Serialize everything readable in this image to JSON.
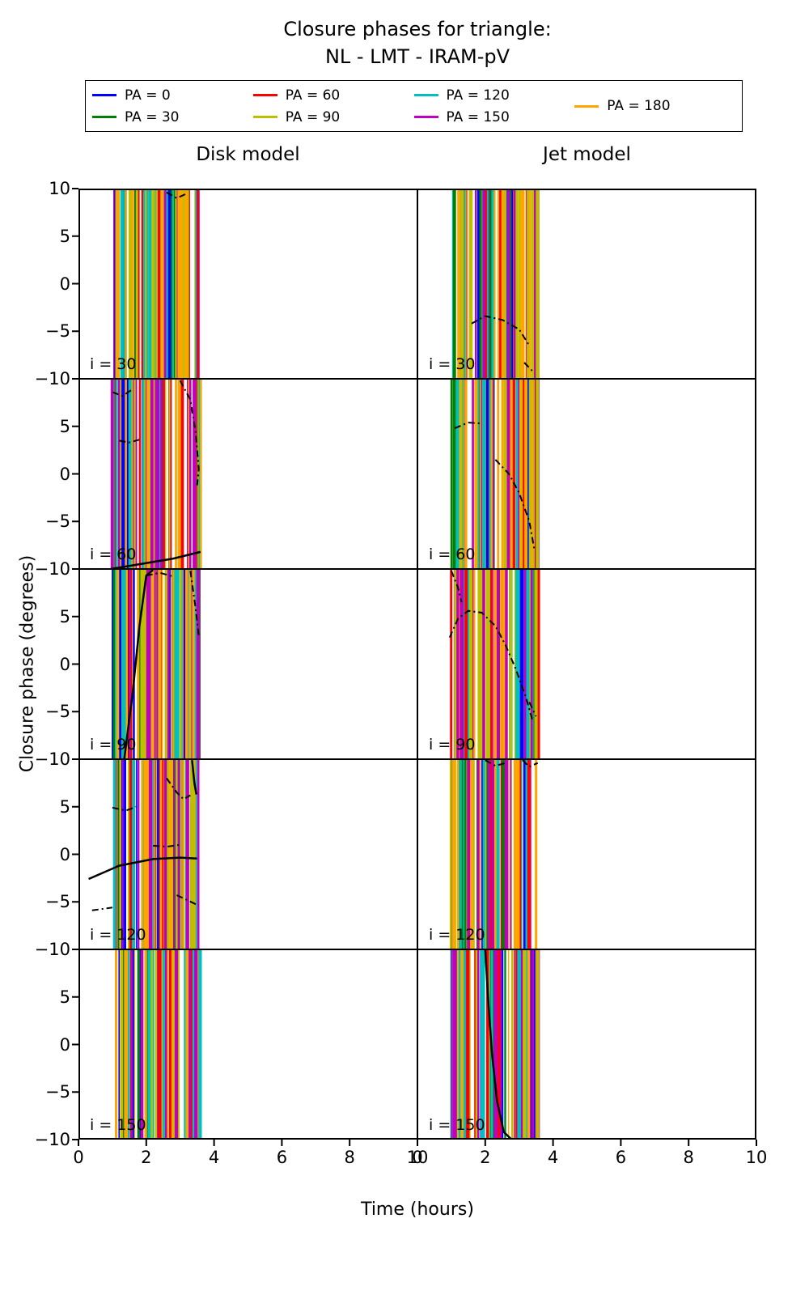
{
  "title": {
    "line1": "Closure phases for triangle:",
    "line2": "NL - LMT - IRAM-pV"
  },
  "legend": {
    "items": [
      {
        "label": "PA = 0",
        "color": "#0000ff"
      },
      {
        "label": "PA = 30",
        "color": "#007f00"
      },
      {
        "label": "PA = 60",
        "color": "#ff0000"
      },
      {
        "label": "PA = 90",
        "color": "#bfbf00"
      },
      {
        "label": "PA = 120",
        "color": "#00bfbf"
      },
      {
        "label": "PA = 150",
        "color": "#bf00bf"
      },
      {
        "label": "PA = 180",
        "color": "#ffa500"
      }
    ],
    "stripe_weights": [
      1,
      1,
      1,
      3,
      2,
      2,
      3
    ]
  },
  "columns": [
    "Disk model",
    "Jet model"
  ],
  "xlabel": "Time (hours)",
  "ylabel": "Closure phase (degrees)",
  "chart_data": {
    "type": "line",
    "layout": {
      "rows": 5,
      "cols": 2,
      "xlim": [
        0,
        10
      ],
      "ylim": [
        -10,
        10
      ],
      "xticks": [
        0,
        2,
        4,
        6,
        8,
        10
      ],
      "yticks": [
        10,
        5,
        0,
        -5,
        -10
      ],
      "grid": false,
      "legend_position": "top"
    },
    "inclinations": [
      30,
      60,
      90,
      120,
      150
    ],
    "oscillation_band": {
      "t_start": 0.95,
      "t_end": 3.55,
      "y_min": -10,
      "y_max": 10,
      "stripe_count": 85,
      "description_colors_cycle_all_PA": true
    },
    "panels": [
      {
        "model": "disk",
        "label": "i = 30",
        "seed": 101,
        "curves": [
          {
            "style": "dashed",
            "pts": [
              [
                2.6,
                9.6
              ],
              [
                2.9,
                9.0
              ],
              [
                3.15,
                9.4
              ]
            ]
          }
        ]
      },
      {
        "model": "jet",
        "label": "i = 30",
        "seed": 202,
        "curves": [
          {
            "style": "dashed",
            "pts": [
              [
                1.6,
                -4.2
              ],
              [
                2.0,
                -3.4
              ],
              [
                2.5,
                -3.8
              ],
              [
                3.0,
                -4.8
              ],
              [
                3.3,
                -6.5
              ]
            ]
          },
          {
            "style": "dashed",
            "pts": [
              [
                3.15,
                -8.3
              ],
              [
                3.45,
                -9.4
              ]
            ]
          }
        ]
      },
      {
        "model": "disk",
        "label": "i = 60",
        "seed": 303,
        "curves": [
          {
            "style": "solid",
            "pts": [
              [
                0.95,
                -10.0
              ],
              [
                1.8,
                -9.5
              ],
              [
                2.8,
                -8.9
              ],
              [
                3.6,
                -8.2
              ]
            ]
          },
          {
            "style": "dashed",
            "pts": [
              [
                1.0,
                8.6
              ],
              [
                1.3,
                8.2
              ],
              [
                1.6,
                8.9
              ]
            ]
          },
          {
            "style": "dashed",
            "pts": [
              [
                1.2,
                3.5
              ],
              [
                1.5,
                3.3
              ],
              [
                1.8,
                3.6
              ]
            ]
          },
          {
            "style": "dashed",
            "pts": [
              [
                3.0,
                9.8
              ],
              [
                3.3,
                7.8
              ],
              [
                3.45,
                4.5
              ],
              [
                3.55,
                0.5
              ],
              [
                3.5,
                -1.2
              ]
            ]
          }
        ]
      },
      {
        "model": "jet",
        "label": "i = 60",
        "seed": 404,
        "curves": [
          {
            "style": "dashed",
            "pts": [
              [
                1.1,
                4.8
              ],
              [
                1.5,
                5.4
              ],
              [
                1.9,
                5.3
              ]
            ]
          },
          {
            "style": "dashed",
            "pts": [
              [
                2.3,
                1.5
              ],
              [
                2.7,
                0.0
              ],
              [
                3.0,
                -2.0
              ],
              [
                3.3,
                -5.0
              ],
              [
                3.45,
                -8.0
              ]
            ]
          }
        ]
      },
      {
        "model": "disk",
        "label": "i = 90",
        "seed": 505,
        "curves": [
          {
            "style": "solid",
            "pts": [
              [
                1.35,
                -10.0
              ],
              [
                1.6,
                -3.0
              ],
              [
                1.8,
                4.0
              ],
              [
                2.0,
                9.3
              ],
              [
                2.2,
                9.9
              ]
            ]
          },
          {
            "style": "dashed",
            "pts": [
              [
                2.0,
                9.3
              ],
              [
                2.4,
                9.6
              ],
              [
                2.8,
                9.2
              ]
            ]
          },
          {
            "style": "dashed",
            "pts": [
              [
                3.3,
                9.8
              ],
              [
                3.45,
                6.0
              ],
              [
                3.55,
                3.0
              ]
            ]
          }
        ]
      },
      {
        "model": "jet",
        "label": "i = 90",
        "seed": 606,
        "curves": [
          {
            "style": "dashed",
            "pts": [
              [
                0.95,
                2.8
              ],
              [
                1.2,
                4.8
              ],
              [
                1.5,
                5.6
              ],
              [
                1.9,
                5.4
              ],
              [
                2.3,
                4.0
              ],
              [
                2.6,
                2.0
              ],
              [
                2.9,
                -0.5
              ],
              [
                3.2,
                -3.5
              ],
              [
                3.4,
                -6.0
              ]
            ]
          },
          {
            "style": "dashed",
            "pts": [
              [
                1.0,
                9.8
              ],
              [
                1.2,
                8.0
              ],
              [
                1.3,
                6.5
              ]
            ]
          },
          {
            "style": "dashed",
            "pts": [
              [
                3.3,
                -4.0
              ],
              [
                3.5,
                -5.5
              ]
            ]
          }
        ]
      },
      {
        "model": "disk",
        "label": "i = 120",
        "seed": 707,
        "curves": [
          {
            "style": "solid",
            "pts": [
              [
                0.3,
                -2.6
              ],
              [
                1.2,
                -1.2
              ],
              [
                2.2,
                -0.5
              ],
              [
                3.0,
                -0.35
              ],
              [
                3.5,
                -0.45
              ]
            ]
          },
          {
            "style": "dashed",
            "pts": [
              [
                1.0,
                4.9
              ],
              [
                1.4,
                4.6
              ],
              [
                1.7,
                5.0
              ]
            ]
          },
          {
            "style": "dashed",
            "pts": [
              [
                2.6,
                8.0
              ],
              [
                2.9,
                6.5
              ],
              [
                3.1,
                5.8
              ],
              [
                3.3,
                6.2
              ]
            ]
          },
          {
            "style": "dashed",
            "pts": [
              [
                2.2,
                0.9
              ],
              [
                2.6,
                0.8
              ],
              [
                3.0,
                1.0
              ]
            ]
          },
          {
            "style": "dashed",
            "pts": [
              [
                0.4,
                -5.9
              ],
              [
                1.0,
                -5.6
              ]
            ]
          },
          {
            "style": "dashed",
            "pts": [
              [
                2.9,
                -4.3
              ],
              [
                3.2,
                -4.8
              ],
              [
                3.55,
                -5.4
              ]
            ]
          },
          {
            "style": "solid",
            "pts": [
              [
                3.35,
                9.9
              ],
              [
                3.42,
                7.5
              ],
              [
                3.48,
                6.3
              ]
            ]
          }
        ]
      },
      {
        "model": "jet",
        "label": "i = 120",
        "seed": 808,
        "curves": [
          {
            "style": "dashed",
            "pts": [
              [
                2.0,
                9.9
              ],
              [
                2.3,
                9.3
              ],
              [
                2.6,
                9.6
              ]
            ]
          },
          {
            "style": "dashed",
            "pts": [
              [
                3.1,
                9.9
              ],
              [
                3.3,
                9.2
              ],
              [
                3.55,
                9.6
              ]
            ]
          }
        ]
      },
      {
        "model": "disk",
        "label": "i = 150",
        "seed": 909,
        "curves": []
      },
      {
        "model": "jet",
        "label": "i = 150",
        "seed": 1010,
        "curves": [
          {
            "style": "solid",
            "pts": [
              [
                2.0,
                10.0
              ],
              [
                2.1,
                4.0
              ],
              [
                2.2,
                -1.0
              ],
              [
                2.35,
                -6.0
              ],
              [
                2.55,
                -9.2
              ],
              [
                2.78,
                -10.0
              ]
            ]
          }
        ]
      }
    ]
  }
}
